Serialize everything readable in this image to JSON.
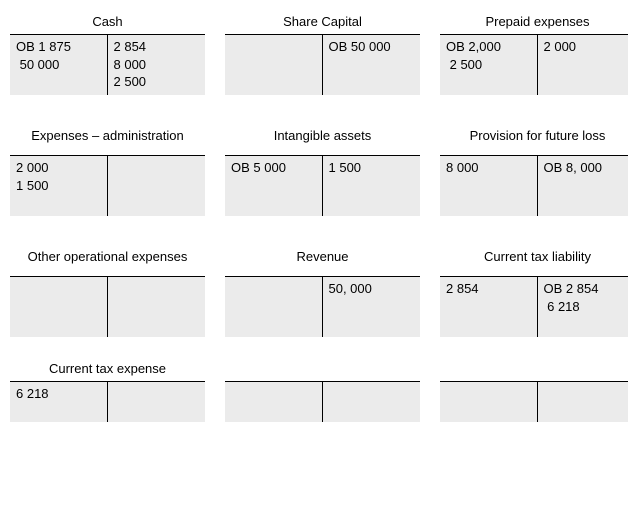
{
  "background_color": "#ffffff",
  "cell_background": "#ebebeb",
  "border_color": "#000000",
  "font_family": "Arial",
  "font_size_pt": 10,
  "accounts": [
    {
      "title": "Cash",
      "debit": [
        "OB 1 875",
        " 50 000"
      ],
      "credit": [
        "2 854",
        "8 000",
        "2 500"
      ]
    },
    {
      "title": "Share Capital",
      "debit": [],
      "credit": [
        "OB 50 000"
      ]
    },
    {
      "title": "Prepaid expenses",
      "debit": [
        "OB 2,000",
        " 2 500"
      ],
      "credit": [
        "2 000"
      ]
    },
    {
      "title": "Expenses – administration",
      "debit": [
        "2 000",
        "1 500"
      ],
      "credit": []
    },
    {
      "title": "Intangible assets",
      "debit": [
        "OB 5 000"
      ],
      "credit": [
        "1 500"
      ]
    },
    {
      "title": "Provision for future loss",
      "debit": [
        "8 000"
      ],
      "credit": [
        "OB 8, 000"
      ]
    },
    {
      "title": "Other operational expenses",
      "debit": [],
      "credit": []
    },
    {
      "title": "Revenue",
      "debit": [],
      "credit": [
        "50, 000"
      ]
    },
    {
      "title": "Current tax liability",
      "debit": [
        "2 854"
      ],
      "credit": [
        "OB 2 854",
        " 6 218"
      ]
    },
    {
      "title": "Current tax expense",
      "debit": [
        "6 218"
      ],
      "credit": []
    },
    {
      "title": "",
      "debit": [],
      "credit": []
    },
    {
      "title": "",
      "debit": [],
      "credit": []
    }
  ]
}
